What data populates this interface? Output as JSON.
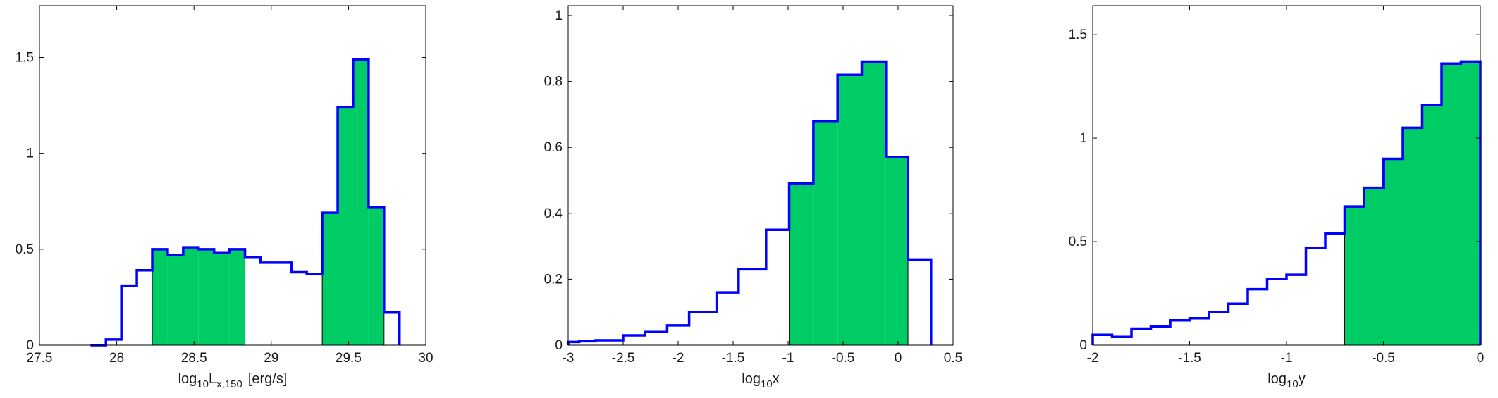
{
  "colors": {
    "outline": "#0000ff",
    "fill": "#00cc66",
    "axis": "#000000",
    "background": "#ffffff"
  },
  "chart_data": [
    {
      "type": "histogram",
      "xlabel": {
        "prefix": "log",
        "sub": "10",
        "main": "L",
        "mainsub": "x,150",
        "unit": "[erg/s]"
      },
      "xlim": [
        27.5,
        30
      ],
      "ylim": [
        0,
        1.77
      ],
      "xticks": [
        27.5,
        28,
        28.5,
        29,
        29.5,
        30
      ],
      "xtick_labels": [
        "27.5",
        "28",
        "28.5",
        "29",
        "29.5",
        "30"
      ],
      "yticks": [
        0,
        0.5,
        1,
        1.5
      ],
      "ytick_labels": [
        "0",
        "0.5",
        "1",
        "1.5"
      ],
      "bin_edges": [
        27.83,
        27.93,
        28.03,
        28.13,
        28.23,
        28.33,
        28.43,
        28.53,
        28.63,
        28.73,
        28.83,
        28.93,
        29.03,
        29.13,
        29.23,
        29.33,
        29.43,
        29.53,
        29.63,
        29.73,
        29.83
      ],
      "values": [
        0.0,
        0.03,
        0.31,
        0.39,
        0.5,
        0.47,
        0.51,
        0.5,
        0.48,
        0.5,
        0.46,
        0.43,
        0.43,
        0.38,
        0.37,
        0.69,
        1.24,
        1.49,
        0.72,
        0.17
      ],
      "filled_ranges": [
        [
          28.23,
          28.83
        ],
        [
          29.33,
          29.73
        ]
      ]
    },
    {
      "type": "histogram",
      "xlabel": {
        "prefix": "log",
        "sub": "10",
        "main": "x"
      },
      "xlim": [
        -3,
        0.5
      ],
      "ylim": [
        0,
        1.03
      ],
      "xticks": [
        -3,
        -2.5,
        -2,
        -1.5,
        -1,
        -0.5,
        0,
        0.5
      ],
      "xtick_labels": [
        "-3",
        "-2.5",
        "-2",
        "-1.5",
        "-1",
        "-0.5",
        "0",
        "0.5"
      ],
      "yticks": [
        0,
        0.2,
        0.4,
        0.6,
        0.8,
        1
      ],
      "ytick_labels": [
        "0",
        "0.2",
        "0.4",
        "0.6",
        "0.8",
        "1"
      ],
      "bin_edges": [
        -3.0,
        -2.9,
        -2.75,
        -2.5,
        -2.3,
        -2.1,
        -1.9,
        -1.65,
        -1.45,
        -1.2,
        -0.99,
        -0.77,
        -0.55,
        -0.33,
        -0.11,
        0.09,
        0.3
      ],
      "values": [
        0.01,
        0.012,
        0.015,
        0.03,
        0.04,
        0.06,
        0.1,
        0.16,
        0.23,
        0.35,
        0.49,
        0.68,
        0.82,
        0.86,
        0.57,
        0.26
      ],
      "filled_ranges": [
        [
          -0.99,
          0.09
        ]
      ]
    },
    {
      "type": "histogram",
      "xlabel": {
        "prefix": "log",
        "sub": "10",
        "main": "y"
      },
      "xlim": [
        -2,
        0
      ],
      "ylim": [
        0,
        1.64
      ],
      "xticks": [
        -2,
        -1.5,
        -1,
        -0.5,
        0
      ],
      "xtick_labels": [
        "-2",
        "-1.5",
        "-1",
        "-0.5",
        "0"
      ],
      "yticks": [
        0,
        0.5,
        1,
        1.5
      ],
      "ytick_labels": [
        "0",
        "0.5",
        "1",
        "1.5"
      ],
      "bin_edges": [
        -2.0,
        -1.9,
        -1.8,
        -1.7,
        -1.6,
        -1.5,
        -1.4,
        -1.3,
        -1.2,
        -1.1,
        -1.0,
        -0.9,
        -0.8,
        -0.7,
        -0.6,
        -0.5,
        -0.4,
        -0.3,
        -0.2,
        -0.1,
        0.0
      ],
      "values": [
        0.05,
        0.04,
        0.08,
        0.09,
        0.12,
        0.13,
        0.16,
        0.2,
        0.27,
        0.32,
        0.34,
        0.47,
        0.54,
        0.67,
        0.76,
        0.9,
        1.05,
        1.16,
        1.36,
        1.37
      ],
      "filled_ranges": [
        [
          -0.7,
          0.0
        ]
      ]
    }
  ]
}
